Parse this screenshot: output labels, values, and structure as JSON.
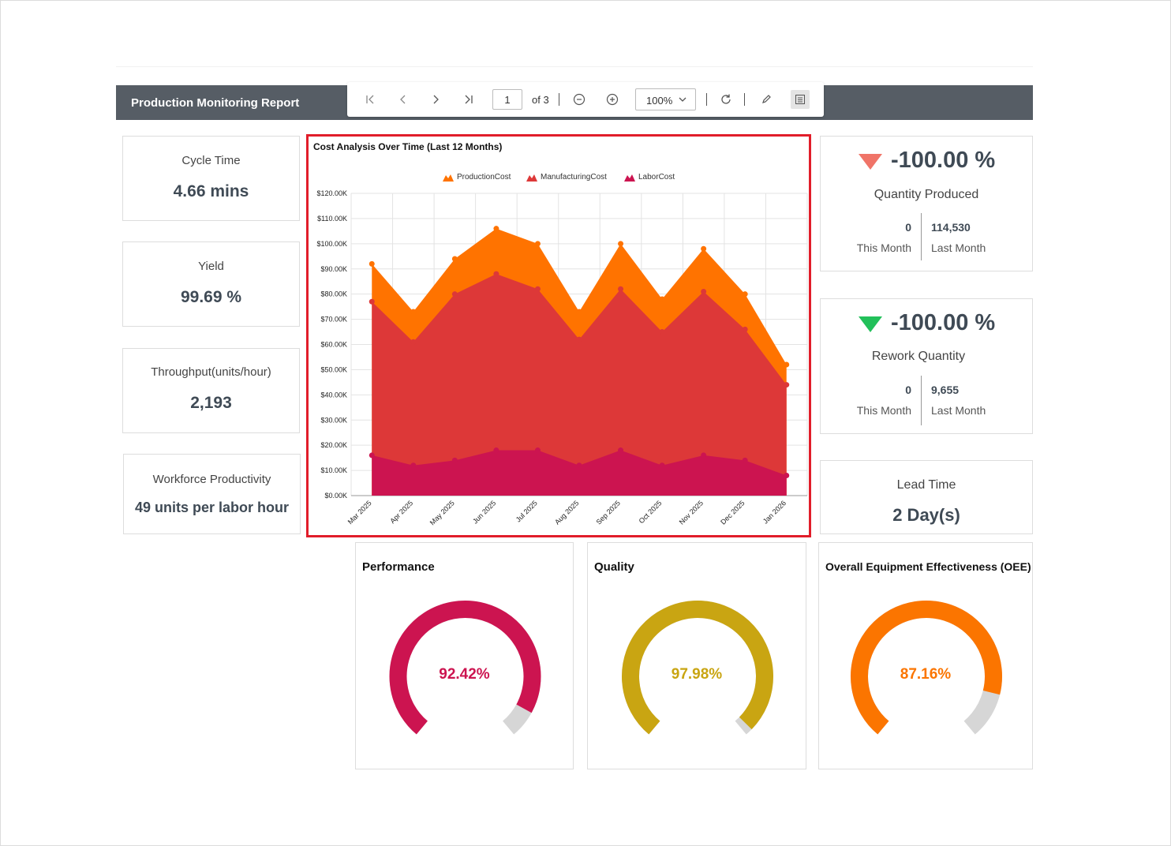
{
  "report": {
    "title": "Production Monitoring Report"
  },
  "toolbar": {
    "page_current": "1",
    "page_total_label": "of 3",
    "zoom_value": "100%"
  },
  "kpis": [
    {
      "label": "Cycle Time",
      "value": "4.66 mins"
    },
    {
      "label": "Yield",
      "value": "99.69 %"
    },
    {
      "label": "Throughput(units/hour)",
      "value": "2,193"
    },
    {
      "label": "Workforce Productivity",
      "value": "49 units per labor hour"
    }
  ],
  "quantity_produced": {
    "percent": "-100.00 %",
    "label": "Quantity Produced",
    "this_month_value": "0",
    "this_month_label": "This Month",
    "last_month_value": "114,530",
    "last_month_label": "Last Month",
    "arrow_color": "#f07468"
  },
  "rework_quantity": {
    "percent": "-100.00 %",
    "label": "Rework Quantity",
    "this_month_value": "0",
    "this_month_label": "This Month",
    "last_month_value": "9,655",
    "last_month_label": "Last Month",
    "arrow_color": "#22c05a"
  },
  "lead_time": {
    "label": "Lead Time",
    "value": "2 Day(s)"
  },
  "gauges": [
    {
      "title": "Performance",
      "value_label": "92.42%",
      "value": 92.42,
      "color": "#cc1450"
    },
    {
      "title": "Quality",
      "value_label": "97.98%",
      "value": 97.98,
      "color": "#c9a512"
    },
    {
      "title": "Overall Equipment Effectiveness (OEE)",
      "value_label": "87.16%",
      "value": 87.16,
      "color": "#fb7500"
    }
  ],
  "chart_data": {
    "type": "area",
    "title": "Cost Analysis Over Time (Last 12 Months)",
    "categories": [
      "Mar 2025",
      "Apr 2025",
      "May 2025",
      "Jun 2025",
      "Jul 2025",
      "Aug 2025",
      "Sep 2025",
      "Oct 2025",
      "Nov 2025",
      "Dec 2025",
      "Jan 2026"
    ],
    "y_ticks": [
      "$0.00K",
      "$10.00K",
      "$20.00K",
      "$30.00K",
      "$40.00K",
      "$50.00K",
      "$60.00K",
      "$70.00K",
      "$80.00K",
      "$90.00K",
      "$100.00K",
      "$110.00K",
      "$120.00K"
    ],
    "ylim": [
      0,
      120000
    ],
    "grid": true,
    "legend_position": "top",
    "series": [
      {
        "name": "ProductionCost",
        "color": "#ff7300",
        "values": [
          92000,
          73000,
          94000,
          106000,
          100000,
          73000,
          100000,
          78000,
          98000,
          80000,
          52000
        ]
      },
      {
        "name": "ManufacturingCost",
        "color": "#dd3838",
        "values": [
          77000,
          61000,
          80000,
          88000,
          82000,
          62000,
          82000,
          65000,
          81000,
          66000,
          44000
        ]
      },
      {
        "name": "LaborCost",
        "color": "#cc1450",
        "values": [
          16000,
          12000,
          14000,
          18000,
          18000,
          12000,
          18000,
          12000,
          16000,
          14000,
          8000
        ]
      }
    ]
  }
}
